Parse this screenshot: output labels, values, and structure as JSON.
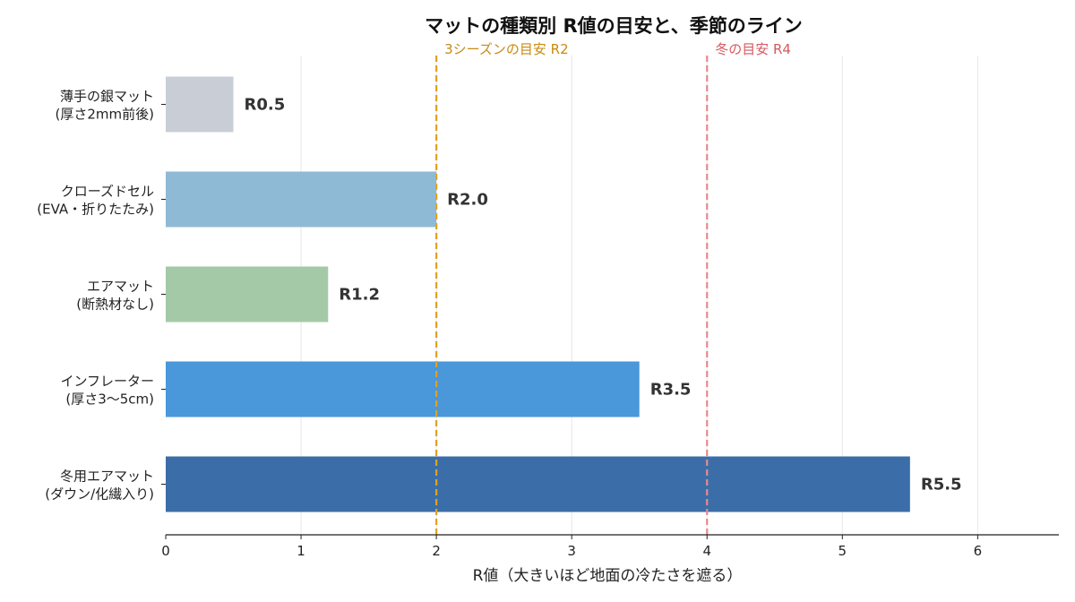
{
  "chart_data": {
    "type": "bar",
    "orientation": "horizontal",
    "title": "マットの種類別 R値の目安と、季節のライン",
    "xlabel": "R値（大きいほど地面の冷たさを遮る）",
    "ylabel": "",
    "xlim": [
      0,
      6.6
    ],
    "xticks": [
      "0",
      "1",
      "2",
      "3",
      "4",
      "5",
      "6"
    ],
    "xtick_values": [
      0,
      1,
      2,
      3,
      4,
      5,
      6
    ],
    "grid": "vertical",
    "categories": [
      {
        "line1": "薄手の銀マット",
        "line2": "(厚さ2mm前後)"
      },
      {
        "line1": "クローズドセル",
        "line2": "(EVA・折りたたみ)"
      },
      {
        "line1": "エアマット",
        "line2": "(断熱材なし)"
      },
      {
        "line1": "インフレーター",
        "line2": "(厚さ3〜5cm)"
      },
      {
        "line1": "冬用エアマット",
        "line2": "(ダウン/化繊入り)"
      }
    ],
    "values": [
      0.5,
      2.0,
      1.2,
      3.5,
      5.5
    ],
    "value_labels": [
      "R0.5",
      "R2.0",
      "R1.2",
      "R3.5",
      "R5.5"
    ],
    "colors": [
      "#c8cdd6",
      "#8fbad6",
      "#a4c9a7",
      "#4a97da",
      "#3b6ea8"
    ],
    "reference_lines": [
      {
        "value": 2,
        "label": "3シーズンの目安 R2",
        "color": "#e2a11e",
        "text_color": "#c98a10"
      },
      {
        "value": 4,
        "label": "冬の目安 R4",
        "color": "#e68a8f",
        "text_color": "#d65a60"
      }
    ]
  }
}
